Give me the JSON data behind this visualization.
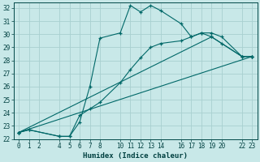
{
  "xlabel": "Humidex (Indice chaleur)",
  "background_color": "#c8e8e8",
  "grid_color": "#a8d0d0",
  "line_color": "#006868",
  "xlim": [
    -0.5,
    23.5
  ],
  "ylim": [
    22,
    32.4
  ],
  "xticks": [
    0,
    1,
    2,
    4,
    5,
    6,
    7,
    8,
    10,
    11,
    12,
    13,
    14,
    16,
    17,
    18,
    19,
    20,
    22,
    23
  ],
  "yticks": [
    22,
    23,
    24,
    25,
    26,
    27,
    28,
    29,
    30,
    31,
    32
  ],
  "series": [
    {
      "x": [
        0,
        1,
        4,
        5,
        6,
        7,
        8,
        10,
        11,
        12,
        13,
        14,
        16,
        17,
        18,
        19,
        20,
        22,
        23
      ],
      "y": [
        22.5,
        22.7,
        22.2,
        22.2,
        23.3,
        26.0,
        29.7,
        30.1,
        32.2,
        31.7,
        32.2,
        31.8,
        30.8,
        29.8,
        30.1,
        30.1,
        29.8,
        28.3,
        28.3
      ]
    },
    {
      "x": [
        0,
        1,
        4,
        5,
        6,
        7,
        8,
        10,
        11,
        12,
        13,
        14,
        16,
        17,
        18,
        19,
        20,
        22,
        23
      ],
      "y": [
        22.5,
        22.7,
        22.2,
        22.2,
        23.8,
        24.3,
        24.8,
        26.3,
        27.3,
        28.2,
        29.0,
        29.3,
        29.5,
        29.8,
        30.1,
        29.8,
        29.3,
        28.3,
        28.3
      ]
    },
    {
      "x": [
        0,
        19,
        22,
        23
      ],
      "y": [
        22.5,
        29.8,
        28.3,
        28.3
      ]
    },
    {
      "x": [
        0,
        23
      ],
      "y": [
        22.5,
        28.3
      ]
    }
  ]
}
